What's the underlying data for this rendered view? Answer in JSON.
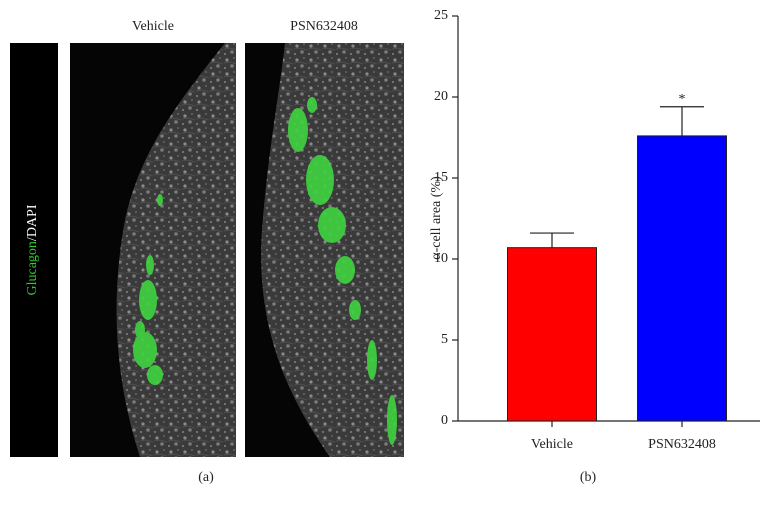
{
  "image_panel": {
    "columns": [
      "Vehicle",
      "PSN632408"
    ],
    "stain_label": [
      "Glucagon",
      "/DAPI"
    ],
    "stain_colors": [
      "#2ecc2e",
      "#ffffff"
    ],
    "panel_label": "(a)"
  },
  "chart_data": {
    "type": "bar",
    "categories": [
      "Vehicle",
      "PSN632408"
    ],
    "values": [
      10.7,
      17.6
    ],
    "errors": [
      0.9,
      1.8
    ],
    "colors": [
      "#ff0000",
      "#0000ff"
    ],
    "ylabel": "α-cell area (%)",
    "ylim": [
      0,
      25
    ],
    "yticks": [
      0,
      5,
      10,
      15,
      20,
      25
    ],
    "annotation": "*",
    "panel_label": "(b)"
  }
}
